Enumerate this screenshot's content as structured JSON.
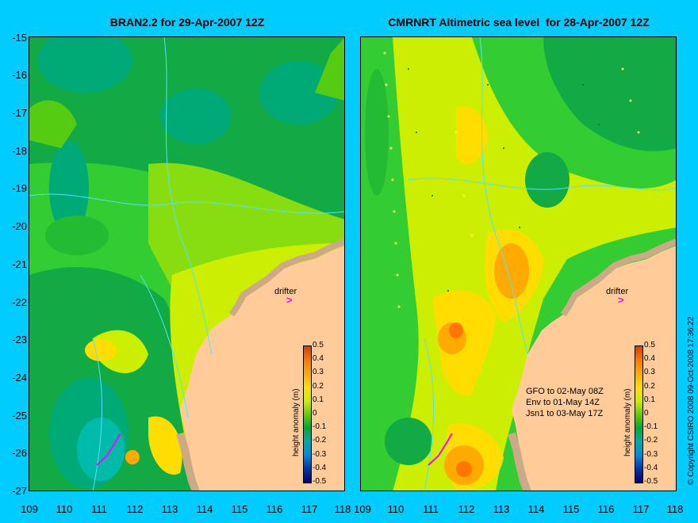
{
  "panels": {
    "left": {
      "title": "BRAN2.2 for 29-Apr-2007 12Z",
      "drifter_label": "drifter",
      "drifter_mark": ">"
    },
    "right": {
      "title": "CMRNRT Altimetric sea level  for 28-Apr-2007 12Z",
      "drifter_label": "drifter",
      "drifter_mark": ">",
      "passes": [
        "GFO to 02-May 08Z",
        "Env to 01-May 14Z",
        "Jsn1 to 03-May 17Z"
      ]
    }
  },
  "axes": {
    "y_ticks": [
      "-15",
      "-16",
      "-17",
      "-18",
      "-19",
      "-20",
      "-21",
      "-22",
      "-23",
      "-24",
      "-25",
      "-26",
      "-27"
    ],
    "x_ticks_left": [
      "109",
      "110",
      "111",
      "112",
      "113",
      "114",
      "115",
      "116",
      "117",
      "118"
    ],
    "x_ticks_right": [
      "109",
      "110",
      "111",
      "112",
      "113",
      "114",
      "115",
      "116",
      "117",
      "118"
    ]
  },
  "colorbar": {
    "label": "height anomaly (m)",
    "ticks": [
      "0.5",
      "0.4",
      "0.3",
      "0.2",
      "0.1",
      "0",
      "-0.1",
      "-0.2",
      "-0.3",
      "-0.4",
      "-0.5"
    ],
    "colors": [
      "#cc4400",
      "#ff7700",
      "#ffaa00",
      "#ffdd00",
      "#ccee00",
      "#66cc00",
      "#00aa33",
      "#00aaaa",
      "#0088dd",
      "#0033aa",
      "#000077"
    ]
  },
  "side_text": "© Copyright CSIRO 2008    09-Oct-2008 17:36:22",
  "colors": {
    "background": "#00ccff",
    "land": "#ffcc99",
    "coast_dark": "#ccaa88",
    "drifter": "#ff00ff",
    "contour": "#55e0ff"
  }
}
